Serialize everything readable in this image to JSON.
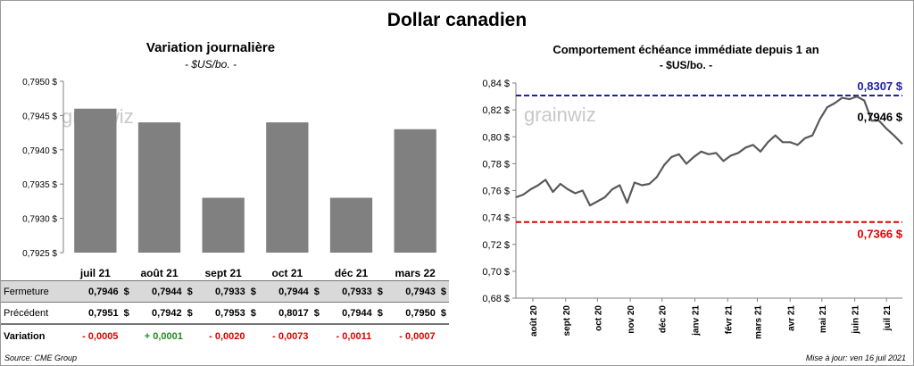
{
  "header": {
    "title": "Dollar canadien"
  },
  "watermark": "grainwiz",
  "left_panel": {
    "title": "Variation  journalière",
    "subtitle": "- $US/bo. -"
  },
  "right_panel": {
    "title": "Comportement échéance immédiate depuis 1 an",
    "subtitle": "- $US/bo. -"
  },
  "table": {
    "rows": [
      {
        "label": "Fermeture",
        "values": [
          "0,7946",
          "0,7944",
          "0,7933",
          "0,7944",
          "0,7933",
          "0,7943"
        ],
        "unit": "$"
      },
      {
        "label": "Précédent",
        "values": [
          "0,7951",
          "0,7942",
          "0,7953",
          "0,8017",
          "0,7944",
          "0,7950"
        ],
        "unit": "$"
      },
      {
        "label": "Variation",
        "values": [
          "- 0,0005",
          "+ 0,0001",
          "- 0,0020",
          "- 0,0073",
          "- 0,0011",
          "- 0,0007"
        ]
      }
    ]
  },
  "footer": {
    "source": "Source: CME Group",
    "update": "Mise à jour: ven 16 juil 2021"
  },
  "colors": {
    "bar": "#808080",
    "line": "#595959",
    "high_line": "#1f1fa8",
    "low_line": "#e00000",
    "negative": "#e00000",
    "positive": "#1f8a1f"
  },
  "chart_data": [
    {
      "type": "bar",
      "categories": [
        "juil 21",
        "août 21",
        "sept 21",
        "oct 21",
        "déc 21",
        "mars 22"
      ],
      "values": [
        0.7946,
        0.7944,
        0.7933,
        0.7944,
        0.7933,
        0.7943
      ],
      "ylim": [
        0.7925,
        0.795
      ],
      "yticks": [
        0.7925,
        0.793,
        0.7935,
        0.794,
        0.7945,
        0.795
      ],
      "ytick_labels": [
        "0,7925 $",
        "0,7930 $",
        "0,7935 $",
        "0,7940 $",
        "0,7945 $",
        "0,7950 $"
      ],
      "title": "Variation  journalière",
      "grid": false
    },
    {
      "type": "line",
      "x_start": "2020-07-16",
      "x_end": "2021-07-16",
      "x_tick_dates": [
        "2020-08-01",
        "2020-09-01",
        "2020-10-01",
        "2020-11-01",
        "2020-12-01",
        "2021-01-01",
        "2021-02-01",
        "2021-03-01",
        "2021-04-01",
        "2021-05-01",
        "2021-06-01",
        "2021-07-01"
      ],
      "x_tick_labels": [
        "août 20",
        "sept 20",
        "oct 20",
        "nov 20",
        "déc 20",
        "janv 21",
        "févr 21",
        "mars 21",
        "avr 21",
        "mai 21",
        "juin 21",
        "juil 21"
      ],
      "ylim": [
        0.68,
        0.84
      ],
      "yticks": [
        0.68,
        0.7,
        0.72,
        0.74,
        0.76,
        0.78,
        0.8,
        0.82,
        0.84
      ],
      "ytick_labels": [
        "0,68 $",
        "0,70 $",
        "0,72 $",
        "0,74 $",
        "0,76 $",
        "0,78 $",
        "0,80 $",
        "0,82 $",
        "0,84 $"
      ],
      "series": [
        {
          "points": [
            [
              "2020-07-16",
              0.755
            ],
            [
              "2020-07-23",
              0.757
            ],
            [
              "2020-07-30",
              0.761
            ],
            [
              "2020-08-06",
              0.764
            ],
            [
              "2020-08-13",
              0.768
            ],
            [
              "2020-08-20",
              0.759
            ],
            [
              "2020-08-27",
              0.765
            ],
            [
              "2020-09-03",
              0.761
            ],
            [
              "2020-09-10",
              0.758
            ],
            [
              "2020-09-17",
              0.76
            ],
            [
              "2020-09-24",
              0.749
            ],
            [
              "2020-10-01",
              0.752
            ],
            [
              "2020-10-08",
              0.755
            ],
            [
              "2020-10-15",
              0.761
            ],
            [
              "2020-10-22",
              0.764
            ],
            [
              "2020-10-29",
              0.751
            ],
            [
              "2020-11-05",
              0.766
            ],
            [
              "2020-11-12",
              0.764
            ],
            [
              "2020-11-19",
              0.765
            ],
            [
              "2020-11-26",
              0.77
            ],
            [
              "2020-12-03",
              0.779
            ],
            [
              "2020-12-10",
              0.785
            ],
            [
              "2020-12-17",
              0.787
            ],
            [
              "2020-12-24",
              0.78
            ],
            [
              "2020-12-31",
              0.785
            ],
            [
              "2021-01-07",
              0.789
            ],
            [
              "2021-01-14",
              0.787
            ],
            [
              "2021-01-21",
              0.788
            ],
            [
              "2021-01-28",
              0.782
            ],
            [
              "2021-02-04",
              0.786
            ],
            [
              "2021-02-11",
              0.788
            ],
            [
              "2021-02-18",
              0.792
            ],
            [
              "2021-02-25",
              0.794
            ],
            [
              "2021-03-04",
              0.789
            ],
            [
              "2021-03-11",
              0.796
            ],
            [
              "2021-03-18",
              0.801
            ],
            [
              "2021-03-25",
              0.796
            ],
            [
              "2021-04-01",
              0.796
            ],
            [
              "2021-04-08",
              0.794
            ],
            [
              "2021-04-15",
              0.799
            ],
            [
              "2021-04-22",
              0.801
            ],
            [
              "2021-04-29",
              0.813
            ],
            [
              "2021-05-06",
              0.822
            ],
            [
              "2021-05-13",
              0.825
            ],
            [
              "2021-05-20",
              0.829
            ],
            [
              "2021-05-27",
              0.828
            ],
            [
              "2021-06-03",
              0.83
            ],
            [
              "2021-06-10",
              0.827
            ],
            [
              "2021-06-17",
              0.812
            ],
            [
              "2021-06-24",
              0.812
            ],
            [
              "2021-07-01",
              0.806
            ],
            [
              "2021-07-08",
              0.801
            ],
            [
              "2021-07-16",
              0.7946
            ]
          ]
        }
      ],
      "reference_lines": [
        {
          "label": "0,8307  $",
          "value": 0.8307,
          "color": "#1f1fa8"
        },
        {
          "label": "0,7366  $",
          "value": 0.7366,
          "color": "#e00000"
        }
      ],
      "last_value_label": "0,7946  $",
      "title": "Comportement échéance immédiate depuis 1 an",
      "grid": false
    }
  ]
}
